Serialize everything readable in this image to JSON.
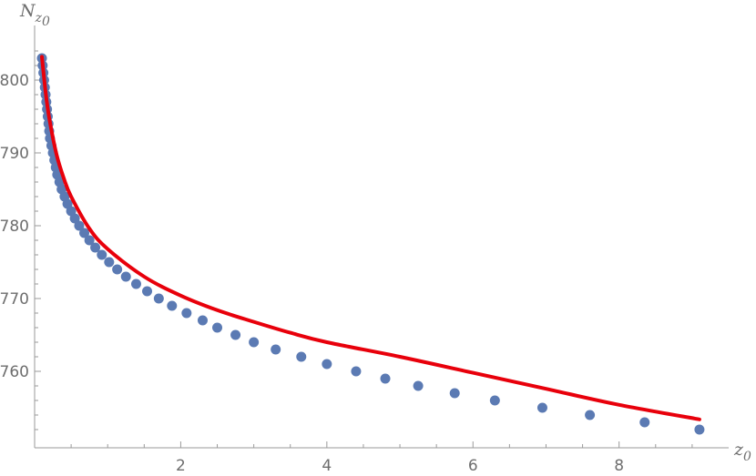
{
  "chart_data": {
    "type": "scatter",
    "xlabel": "z",
    "xlabel_subscript": "0",
    "ylabel": "N",
    "ylabel_subscript": "z",
    "ylabel_sub_subscript": "0",
    "xlim": [
      0,
      9.5
    ],
    "ylim": [
      749.5,
      806
    ],
    "xticks": [
      2,
      4,
      6,
      8
    ],
    "yticks": [
      760,
      770,
      780,
      790,
      800
    ],
    "grid": false,
    "series": [
      {
        "kind": "points",
        "color": "#5b7ab3",
        "x": [
          0.1,
          0.11,
          0.12,
          0.13,
          0.14,
          0.15,
          0.16,
          0.17,
          0.18,
          0.19,
          0.2,
          0.21,
          0.23,
          0.25,
          0.27,
          0.29,
          0.31,
          0.34,
          0.37,
          0.41,
          0.45,
          0.5,
          0.55,
          0.61,
          0.68,
          0.75,
          0.83,
          0.92,
          1.02,
          1.13,
          1.25,
          1.39,
          1.54,
          1.7,
          1.88,
          2.08,
          2.3,
          2.5,
          2.75,
          3.0,
          3.3,
          3.65,
          4.0,
          4.4,
          4.8,
          5.25,
          5.75,
          6.3,
          6.95,
          7.6,
          8.35,
          9.1
        ],
        "y": [
          803,
          802,
          801,
          800,
          799,
          798,
          797,
          796,
          795,
          794,
          793,
          792,
          791,
          790,
          789,
          788,
          787,
          786,
          785,
          784,
          783,
          782,
          781,
          780,
          779,
          778,
          777,
          776,
          775,
          774,
          773,
          772,
          771,
          770,
          769,
          768,
          767,
          766,
          765,
          764,
          763,
          762,
          761,
          760,
          759,
          758,
          757,
          756,
          755,
          754,
          753,
          752
        ]
      },
      {
        "kind": "curve",
        "color": "#e8000b",
        "x": [
          0.1,
          0.15,
          0.2,
          0.3,
          0.4,
          0.5,
          0.75,
          1.0,
          1.5,
          2.0,
          2.5,
          3.0,
          3.5,
          4.0,
          5.0,
          6.0,
          7.0,
          8.0,
          9.1
        ],
        "y": [
          803.2,
          798.4,
          794.8,
          789.8,
          786.5,
          784.0,
          779.6,
          776.8,
          773.0,
          770.4,
          768.4,
          766.8,
          765.3,
          764.0,
          762.0,
          759.8,
          757.6,
          755.4,
          753.4
        ]
      }
    ]
  }
}
